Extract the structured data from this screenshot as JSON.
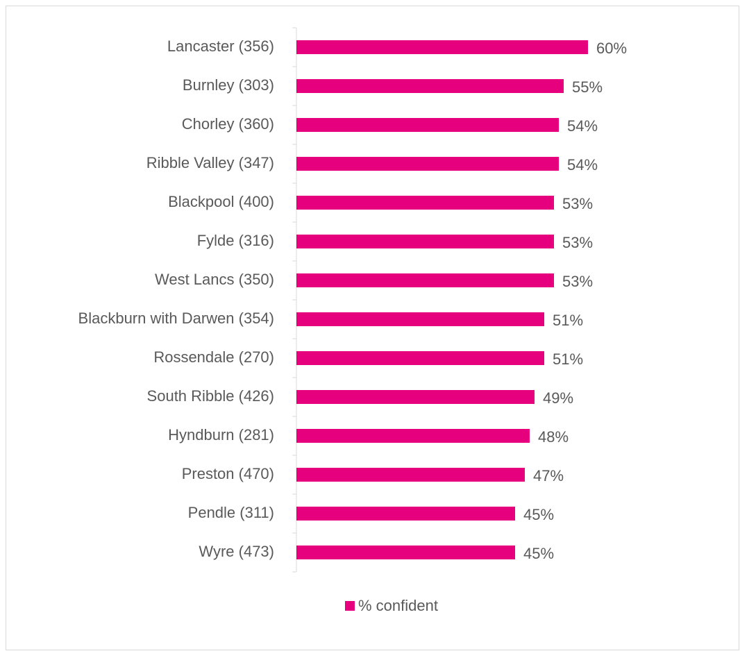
{
  "chart_data": {
    "type": "bar",
    "orientation": "horizontal",
    "categories": [
      "Lancaster (356)",
      "Burnley (303)",
      "Chorley (360)",
      "Ribble Valley (347)",
      "Blackpool (400)",
      "Fylde (316)",
      "West Lancs (350)",
      "Blackburn with Darwen (354)",
      "Rossendale (270)",
      "South Ribble (426)",
      "Hyndburn (281)",
      "Preston (470)",
      "Pendle (311)",
      "Wyre (473)"
    ],
    "series": [
      {
        "name": "% confident",
        "color": "#e6007e",
        "values": [
          60,
          55,
          54,
          54,
          53,
          53,
          53,
          51,
          51,
          49,
          48,
          47,
          45,
          45
        ],
        "value_labels": [
          "60%",
          "55%",
          "54%",
          "54%",
          "53%",
          "53%",
          "53%",
          "51%",
          "51%",
          "49%",
          "48%",
          "47%",
          "45%",
          "45%"
        ]
      }
    ],
    "xlim": [
      0,
      80
    ],
    "legend": "bottom"
  }
}
